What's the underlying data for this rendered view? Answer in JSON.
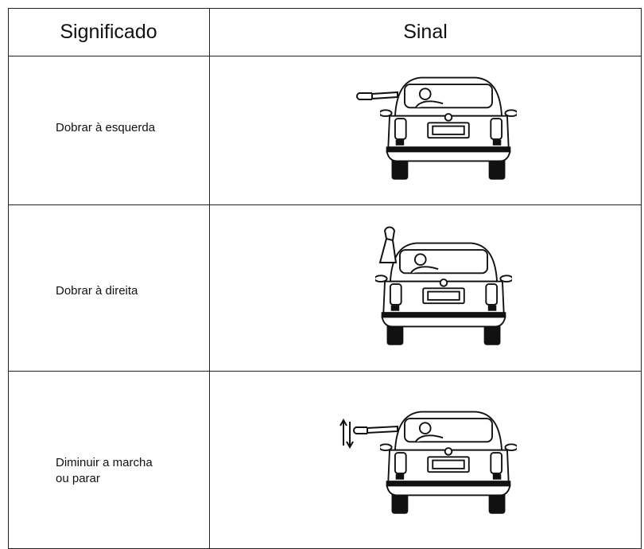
{
  "table": {
    "header": [
      "Significado",
      "Sinal"
    ],
    "rows": [
      {
        "meaning": "Dobrar à esquerda"
      },
      {
        "meaning": "Dobrar à direita"
      },
      {
        "meaning": "Diminuir a marcha\nou parar"
      }
    ]
  }
}
